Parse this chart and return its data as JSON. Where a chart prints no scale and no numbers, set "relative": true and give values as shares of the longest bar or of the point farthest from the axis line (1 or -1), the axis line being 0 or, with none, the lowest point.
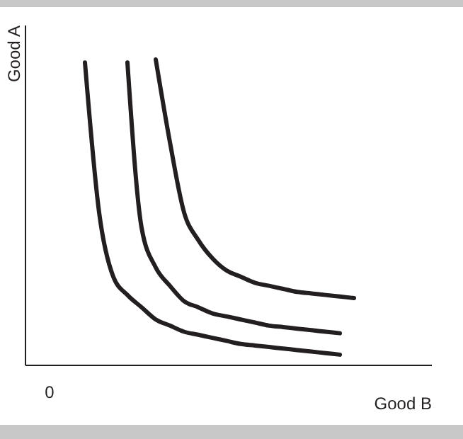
{
  "chart_data": {
    "type": "line",
    "relative": true,
    "xlabel": "Good B",
    "ylabel": "Good A",
    "annotations": [
      "0"
    ],
    "categories": [
      null,
      null,
      null,
      null,
      null,
      null,
      null,
      null,
      null,
      null,
      null,
      null,
      null,
      null,
      null,
      null,
      null,
      null,
      null,
      null
    ],
    "series": [
      {
        "color": "#231f20",
        "values": [
          0.99,
          0.5,
          0.29,
          0.23,
          0.19,
          0.15,
          0.13,
          0.11,
          0.1,
          0.09,
          0.08,
          0.07,
          0.065,
          0.06,
          0.055,
          0.05,
          0.045,
          0.04,
          0.035,
          null
        ]
      },
      {
        "color": "#231f20",
        "values": [
          null,
          null,
          null,
          0.99,
          0.45,
          0.32,
          0.26,
          0.21,
          0.19,
          0.17,
          0.16,
          0.15,
          0.14,
          0.13,
          0.125,
          0.12,
          0.115,
          0.11,
          0.105,
          null
        ]
      },
      {
        "color": "#231f20",
        "values": [
          null,
          null,
          null,
          null,
          null,
          1,
          0.73,
          0.5,
          0.41,
          0.35,
          0.31,
          0.29,
          0.27,
          0.26,
          0.25,
          0.24,
          0.235,
          0.23,
          0.225,
          0.22
        ]
      }
    ]
  }
}
